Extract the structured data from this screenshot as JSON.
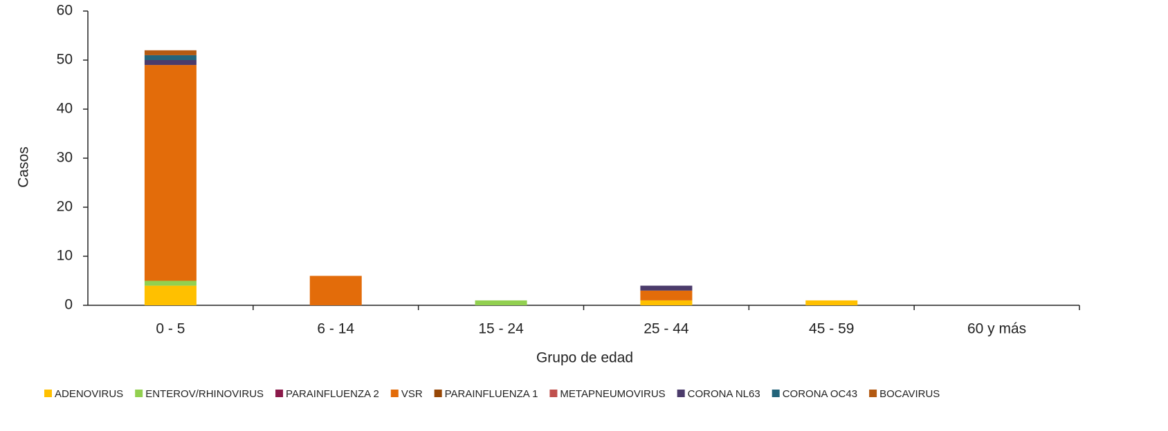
{
  "chart_data": {
    "type": "stacked_bar",
    "x_label": "Grupo de edad",
    "y_label": "Casos",
    "categories": [
      "0 - 5",
      "6 - 14",
      "15 - 24",
      "25 - 44",
      "45 - 59",
      "60 y más"
    ],
    "series": [
      {
        "name": "ADENOVIRUS",
        "color": "#FFC000",
        "values": [
          4,
          0,
          0,
          1,
          1,
          0
        ]
      },
      {
        "name": "ENTEROV/RHINOVIRUS",
        "color": "#92D050",
        "values": [
          1,
          0,
          1,
          0,
          0,
          0
        ]
      },
      {
        "name": "PARAINFLUENZA 2",
        "color": "#8B1A4A",
        "values": [
          0,
          0,
          0,
          0,
          0,
          0
        ]
      },
      {
        "name": "VSR",
        "color": "#E36C0A",
        "values": [
          44,
          6,
          0,
          2,
          0,
          0
        ]
      },
      {
        "name": "PARAINFLUENZA 1",
        "color": "#974706",
        "values": [
          0,
          0,
          0,
          0,
          0,
          0
        ]
      },
      {
        "name": "METAPNEUMOVIRUS",
        "color": "#C0504D",
        "values": [
          0,
          0,
          0,
          0,
          0,
          0
        ]
      },
      {
        "name": "CORONA NL63",
        "color": "#4B3B6B",
        "values": [
          1,
          0,
          0,
          1,
          0,
          0
        ]
      },
      {
        "name": "CORONA OC43",
        "color": "#23647A",
        "values": [
          1,
          0,
          0,
          0,
          0,
          0
        ]
      },
      {
        "name": "BOCAVIRUS",
        "color": "#B35A12",
        "values": [
          1,
          0,
          0,
          0,
          0,
          0
        ]
      }
    ],
    "ylim": [
      0,
      60
    ],
    "yticks": [
      0,
      10,
      20,
      30,
      40,
      50,
      60
    ]
  }
}
